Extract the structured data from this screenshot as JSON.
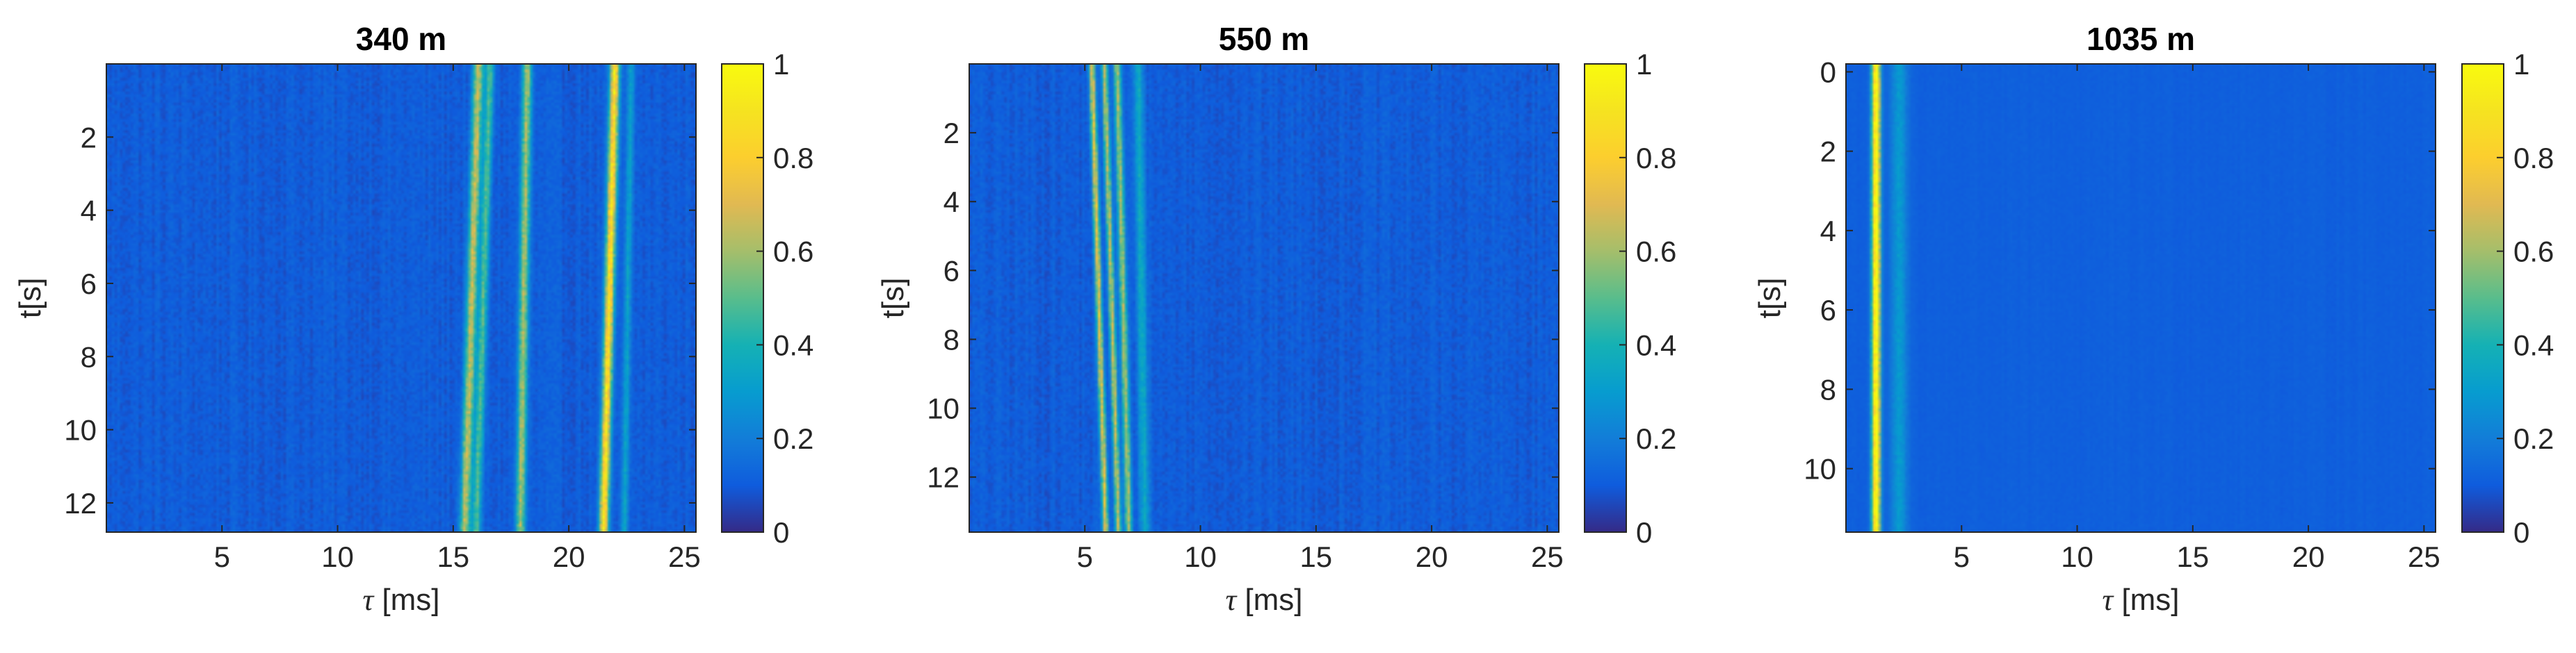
{
  "figure": {
    "colormap": "parula"
  },
  "chart_data": [
    {
      "type": "heatmap",
      "title": "340 m",
      "xlabel_symbol": "τ",
      "xlabel_unit": " [ms]",
      "ylabel": "t[s]",
      "xlim": [
        0,
        25.5
      ],
      "ylim": [
        0,
        12.8
      ],
      "y_reversed": true,
      "xticks": [
        5,
        10,
        15,
        20,
        25
      ],
      "yticks": [
        2,
        4,
        6,
        8,
        10,
        12
      ],
      "colorbar": {
        "ticks": [
          0,
          0.2,
          0.4,
          0.6,
          0.8,
          1
        ],
        "tick_labels": [
          "0",
          "0.2",
          "0.4",
          "0.6",
          "0.8",
          "1"
        ],
        "range": [
          0,
          1
        ]
      },
      "noise": {
        "base": 0.1,
        "amp": 0.09
      },
      "streaks": [
        {
          "tau_at_t0": 16.1,
          "tau_at_tmax": 15.5,
          "width_ms": 0.22,
          "peak": 0.55
        },
        {
          "tau_at_t0": 16.6,
          "tau_at_tmax": 16.0,
          "width_ms": 0.18,
          "peak": 0.38
        },
        {
          "tau_at_t0": 18.2,
          "tau_at_tmax": 17.9,
          "width_ms": 0.2,
          "peak": 0.5
        },
        {
          "tau_at_t0": 22.0,
          "tau_at_tmax": 21.5,
          "width_ms": 0.2,
          "peak": 0.78
        },
        {
          "tau_at_t0": 22.7,
          "tau_at_tmax": 22.4,
          "width_ms": 0.15,
          "peak": 0.22
        }
      ]
    },
    {
      "type": "heatmap",
      "title": "550 m",
      "xlabel_symbol": "τ",
      "xlabel_unit": " [ms]",
      "ylabel": "t[s]",
      "xlim": [
        0,
        25.5
      ],
      "ylim": [
        0,
        13.6
      ],
      "y_reversed": true,
      "xticks": [
        5,
        10,
        15,
        20,
        25
      ],
      "yticks": [
        2,
        4,
        6,
        8,
        10,
        12
      ],
      "colorbar": {
        "ticks": [
          0,
          0.2,
          0.4,
          0.6,
          0.8,
          1
        ],
        "tick_labels": [
          "0",
          "0.2",
          "0.4",
          "0.6",
          "0.8",
          "1"
        ],
        "range": [
          0,
          1
        ]
      },
      "noise": {
        "base": 0.1,
        "amp": 0.09
      },
      "streaks": [
        {
          "tau_at_t0": 5.3,
          "tau_at_tmax": 5.9,
          "width_ms": 0.13,
          "peak": 0.62
        },
        {
          "tau_at_t0": 5.85,
          "tau_at_tmax": 6.45,
          "width_ms": 0.13,
          "peak": 0.55
        },
        {
          "tau_at_t0": 6.4,
          "tau_at_tmax": 6.9,
          "width_ms": 0.15,
          "peak": 0.5
        },
        {
          "tau_at_t0": 7.3,
          "tau_at_tmax": 7.6,
          "width_ms": 0.22,
          "peak": 0.25
        }
      ]
    },
    {
      "type": "heatmap",
      "title": "1035 m",
      "xlabel_symbol": "τ",
      "xlabel_unit": " [ms]",
      "ylabel": "t[s]",
      "xlim": [
        0,
        25.5
      ],
      "ylim": [
        -0.2,
        11.6
      ],
      "y_reversed": true,
      "xticks": [
        5,
        10,
        15,
        20,
        25
      ],
      "yticks": [
        0,
        2,
        4,
        6,
        8,
        10
      ],
      "colorbar": {
        "ticks": [
          0,
          0.2,
          0.4,
          0.6,
          0.8,
          1
        ],
        "tick_labels": [
          "0",
          "0.2",
          "0.4",
          "0.6",
          "0.8",
          "1"
        ],
        "range": [
          0,
          1
        ]
      },
      "noise": {
        "base": 0.11,
        "amp": 0.03
      },
      "streaks": [
        {
          "tau_at_t0": 1.3,
          "tau_at_tmax": 1.3,
          "width_ms": 0.18,
          "peak": 0.95
        },
        {
          "tau_at_t0": 2.3,
          "tau_at_tmax": 2.3,
          "width_ms": 0.35,
          "peak": 0.18
        }
      ]
    }
  ]
}
